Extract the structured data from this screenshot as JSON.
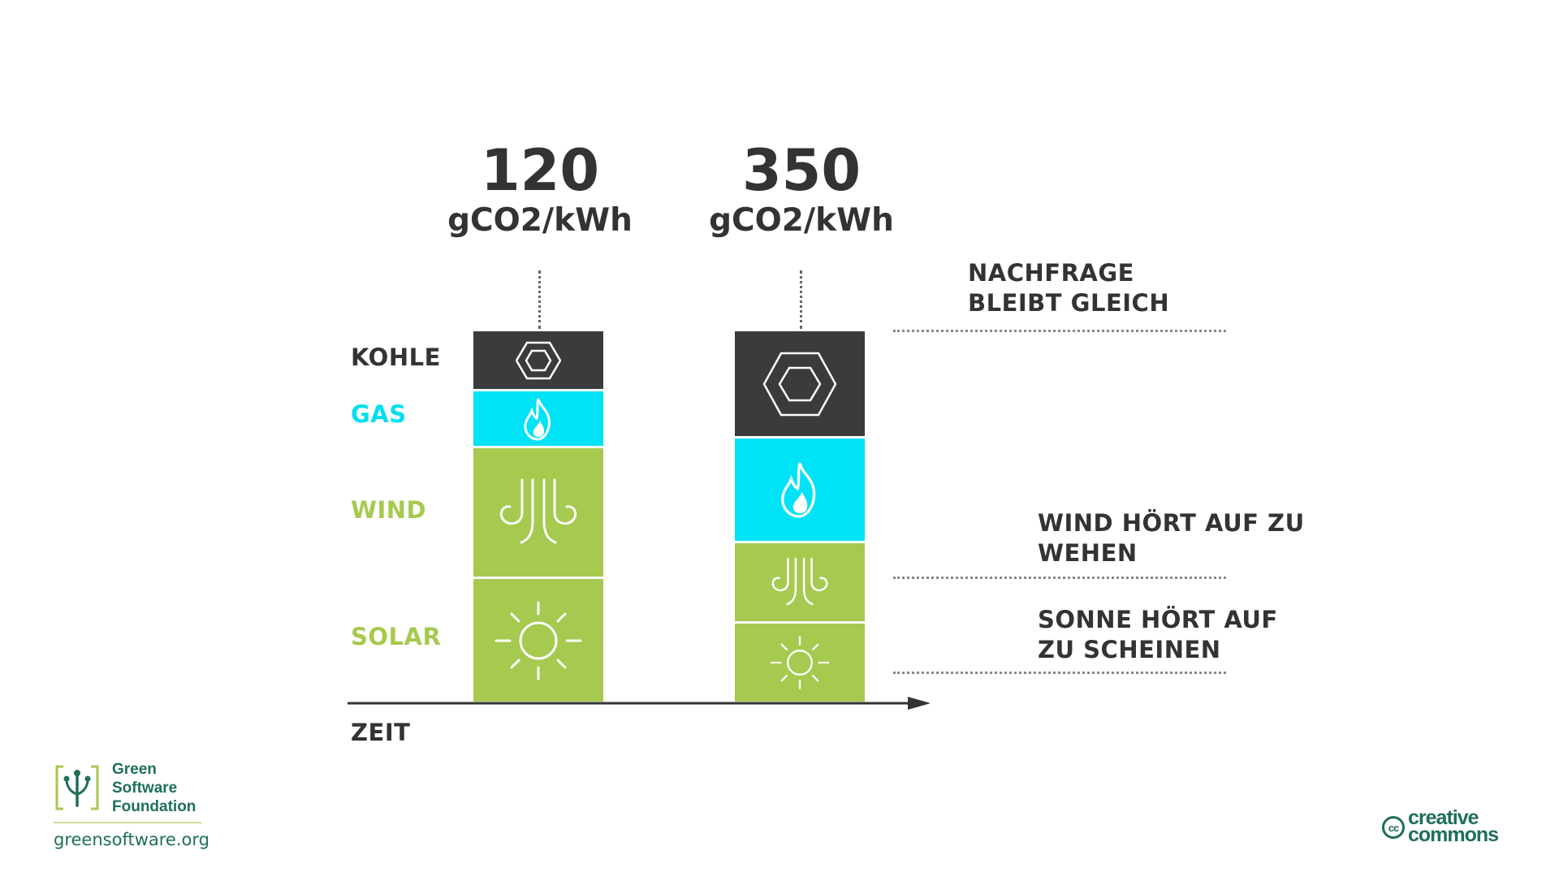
{
  "colors": {
    "coal": "#3b3b3b",
    "gas": "#00e2f5",
    "renewable": "#a6c94f",
    "text": "#333333",
    "brand": "#1e6f5c"
  },
  "icons": {
    "coal": "hexagon-icon",
    "gas": "flame-icon",
    "wind": "wind-icon",
    "solar": "sun-icon"
  },
  "bars": [
    {
      "value": "120",
      "unit": "gCO2/kWh",
      "segments": {
        "coal": 1,
        "gas": 1,
        "wind": 2.3,
        "solar": 2.3
      }
    },
    {
      "value": "350",
      "unit": "gCO2/kWh",
      "segments": {
        "coal": 1.9,
        "gas": 1.9,
        "wind": 1.4,
        "solar": 1.4
      }
    }
  ],
  "legend": {
    "coal": "KOHLE",
    "gas": "GAS",
    "wind": "WIND",
    "solar": "SOLAR"
  },
  "axis": {
    "x_label": "ZEIT"
  },
  "notes": {
    "demand_line1": "NACHFRAGE",
    "demand_line2": "BLEIBT GLEICH",
    "wind_line1": "WIND HÖRT AUF ZU",
    "wind_line2": "WEHEN",
    "sun_line1": "SONNE HÖRT AUF",
    "sun_line2": "ZU SCHEINEN"
  },
  "footer": {
    "org_line1": "Green",
    "org_line2": "Software",
    "org_line3": "Foundation",
    "url": "greensoftware.org",
    "license_line1": "creative",
    "license_line2": "commons",
    "license_badge": "cc"
  }
}
